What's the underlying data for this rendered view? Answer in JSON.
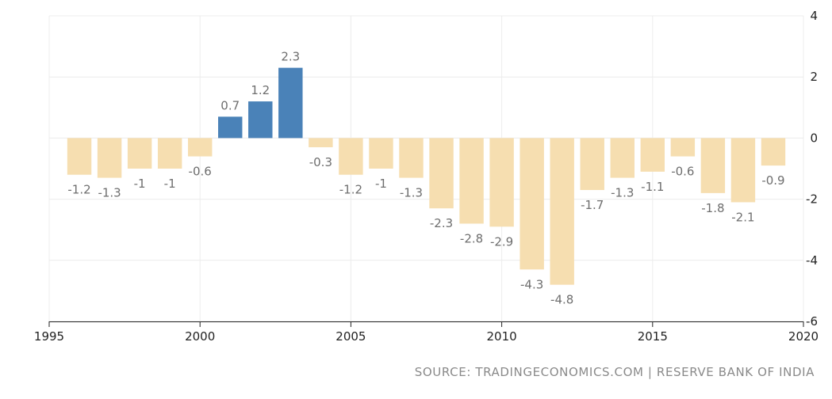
{
  "chart_data": {
    "type": "bar",
    "title": "",
    "xlabel": "",
    "ylabel": "",
    "x": [
      1996,
      1997,
      1998,
      1999,
      2000,
      2001,
      2002,
      2003,
      2004,
      2005,
      2006,
      2007,
      2008,
      2009,
      2010,
      2011,
      2012,
      2013,
      2014,
      2015,
      2016,
      2017,
      2018,
      2019
    ],
    "values": [
      -1.2,
      -1.3,
      -1,
      -1,
      -0.6,
      0.7,
      1.2,
      2.3,
      -0.3,
      -1.2,
      -1,
      -1.3,
      -2.3,
      -2.8,
      -2.9,
      -4.3,
      -4.8,
      -1.7,
      -1.3,
      -1.1,
      -0.6,
      -1.8,
      -2.1,
      -0.9
    ],
    "data_labels": [
      "-1.2",
      "-1.3",
      "-1",
      "-1",
      "-0.6",
      "0.7",
      "1.2",
      "2.3",
      "-0.3",
      "-1.2",
      "-1",
      "-1.3",
      "-2.3",
      "-2.8",
      "-2.9",
      "-4.3",
      "-4.8",
      "-1.7",
      "-1.3",
      "-1.1",
      "-0.6",
      "-1.8",
      "-2.1",
      "-0.9"
    ],
    "xlim": [
      1995,
      2020
    ],
    "ylim": [
      -6,
      4
    ],
    "x_ticks": [
      1995,
      2000,
      2005,
      2010,
      2015,
      2020
    ],
    "y_ticks": [
      4,
      2,
      0,
      -2,
      -4,
      -6
    ],
    "grid": true,
    "y_axis_side": "right",
    "colors": {
      "positive": "#4a82b8",
      "negative": "#f6deb0",
      "grid": "#ececec",
      "axis": "#222222",
      "label": "#6e6e6e"
    }
  },
  "source": "SOURCE: TRADINGECONOMICS.COM | RESERVE BANK OF INDIA"
}
